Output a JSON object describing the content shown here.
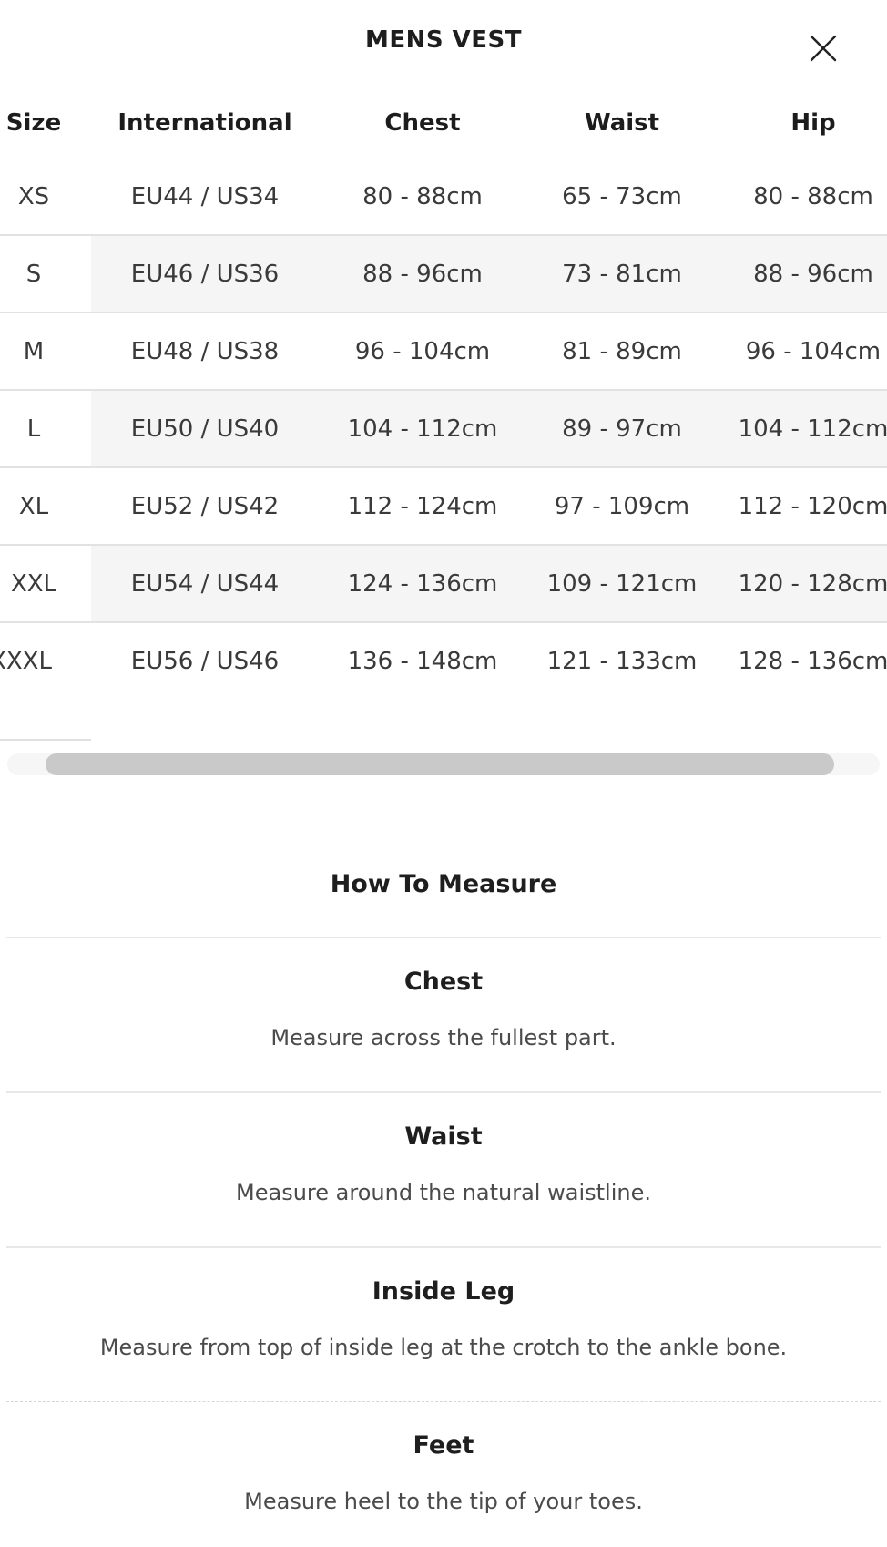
{
  "modal": {
    "title": "MENS VEST",
    "close_icon": "x-icon"
  },
  "size_table": {
    "columns": [
      "Size",
      "International",
      "Chest",
      "Waist",
      "Hip"
    ],
    "rows": [
      [
        "XS",
        "EU44 / US34",
        "80 - 88cm",
        "65 - 73cm",
        "80 - 88cm"
      ],
      [
        "S",
        "EU46 / US36",
        "88 - 96cm",
        "73 - 81cm",
        "88 - 96cm"
      ],
      [
        "M",
        "EU48 / US38",
        "96 - 104cm",
        "81 - 89cm",
        "96 - 104cm"
      ],
      [
        "L",
        "EU50 / US40",
        "104 - 112cm",
        "89 - 97cm",
        "104 - 112cm"
      ],
      [
        "XL",
        "EU52 / US42",
        "112 - 124cm",
        "97 - 109cm",
        "112 - 120cm"
      ],
      [
        "XXL",
        "EU54 / US44",
        "124 - 136cm",
        "109 - 121cm",
        "120 - 128cm"
      ],
      [
        "XXXL",
        "EU56 / US46",
        "136 - 148cm",
        "121 - 133cm",
        "128 - 136cm"
      ]
    ]
  },
  "how_to_measure": {
    "title": "How To Measure",
    "sections": [
      {
        "heading": "Chest",
        "text": "Measure across the fullest part."
      },
      {
        "heading": "Waist",
        "text": "Measure around the natural waistline."
      },
      {
        "heading": "Inside Leg",
        "text": "Measure from top of inside leg at the crotch to the ankle bone."
      },
      {
        "heading": "Feet",
        "text": "Measure heel to the tip of your toes."
      }
    ]
  },
  "colors": {
    "stripe": "#f5f5f5",
    "row_border": "#e2e2e2",
    "divider": "#e8e8e8",
    "scrollbar_track": "#f6f6f6",
    "scrollbar_thumb": "#c9c9c9",
    "heading_text": "#1e1e1e",
    "cell_text": "#3a3a3a",
    "body_text": "#4b4b4b"
  }
}
